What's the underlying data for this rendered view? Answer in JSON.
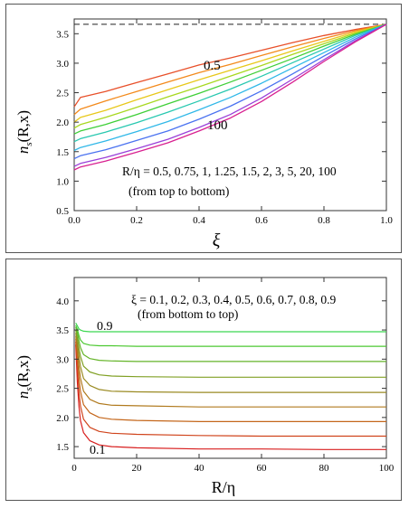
{
  "chart_data": [
    {
      "type": "line",
      "xlabel": "ξ",
      "ylabel": "n_s(R,x)",
      "ylabel_main": "n",
      "ylabel_sub": "s",
      "ylabel_rest": "(R,x)",
      "xlim": [
        0,
        1
      ],
      "ylim": [
        0.5,
        3.75
      ],
      "xticks": [
        "0.0",
        "0.2",
        "0.4",
        "0.6",
        "0.8",
        "1.0"
      ],
      "xtick_values": [
        0,
        0.2,
        0.4,
        0.6,
        0.8,
        1.0
      ],
      "yticks": [
        "0.5",
        "1.0",
        "1.5",
        "2.0",
        "2.5",
        "3.0",
        "3.5"
      ],
      "ytick_values": [
        0.5,
        1.0,
        1.5,
        2.0,
        2.5,
        3.0,
        3.5
      ],
      "asymptote": 3.66,
      "annotations": {
        "top_label": "0.5",
        "bottom_label": "100",
        "legend_line1": "R/η = 0.5, 0.75, 1, 1.25, 1.5, 2, 3, 5, 20, 100",
        "legend_line2": "(from top to bottom)"
      },
      "x": [
        0,
        0.02,
        0.1,
        0.2,
        0.3,
        0.4,
        0.5,
        0.6,
        0.7,
        0.8,
        0.9,
        1.0
      ],
      "series": [
        {
          "color": "#e8502a",
          "values": [
            2.26,
            2.42,
            2.52,
            2.67,
            2.82,
            2.97,
            3.09,
            3.22,
            3.35,
            3.47,
            3.57,
            3.66
          ]
        },
        {
          "color": "#f38a1c",
          "values": [
            2.13,
            2.22,
            2.36,
            2.52,
            2.68,
            2.84,
            2.98,
            3.13,
            3.28,
            3.42,
            3.55,
            3.66
          ]
        },
        {
          "color": "#e8c81a",
          "values": [
            2.0,
            2.08,
            2.2,
            2.38,
            2.55,
            2.72,
            2.88,
            3.04,
            3.21,
            3.37,
            3.53,
            3.66
          ]
        },
        {
          "color": "#a8d820",
          "values": [
            1.9,
            1.96,
            2.08,
            2.25,
            2.43,
            2.6,
            2.78,
            2.96,
            3.15,
            3.33,
            3.51,
            3.66
          ]
        },
        {
          "color": "#3fcf38",
          "values": [
            1.8,
            1.85,
            1.96,
            2.13,
            2.31,
            2.49,
            2.68,
            2.88,
            3.08,
            3.29,
            3.49,
            3.66
          ]
        },
        {
          "color": "#28c8b0",
          "values": [
            1.67,
            1.72,
            1.83,
            1.99,
            2.17,
            2.36,
            2.56,
            2.78,
            3.01,
            3.24,
            3.47,
            3.66
          ]
        },
        {
          "color": "#30b8e8",
          "values": [
            1.52,
            1.57,
            1.68,
            1.84,
            2.01,
            2.21,
            2.42,
            2.66,
            2.92,
            3.18,
            3.44,
            3.66
          ]
        },
        {
          "color": "#4a72f0",
          "values": [
            1.38,
            1.43,
            1.53,
            1.69,
            1.85,
            2.05,
            2.27,
            2.53,
            2.82,
            3.12,
            3.41,
            3.66
          ]
        },
        {
          "color": "#9a40d8",
          "values": [
            1.25,
            1.3,
            1.4,
            1.55,
            1.71,
            1.91,
            2.13,
            2.41,
            2.73,
            3.06,
            3.38,
            3.66
          ]
        },
        {
          "color": "#d82090",
          "values": [
            1.19,
            1.24,
            1.34,
            1.49,
            1.65,
            1.85,
            2.07,
            2.35,
            2.68,
            3.03,
            3.36,
            3.66
          ]
        }
      ]
    },
    {
      "type": "line",
      "xlabel": "R/η",
      "ylabel": "n_s(R,x)",
      "ylabel_main": "n",
      "ylabel_sub": "s",
      "ylabel_rest": "(R,x)",
      "xlim": [
        0,
        100
      ],
      "ylim": [
        1.3,
        4.4
      ],
      "xticks": [
        "0",
        "20",
        "40",
        "60",
        "80",
        "100"
      ],
      "xtick_values": [
        0,
        20,
        40,
        60,
        80,
        100
      ],
      "yticks": [
        "1.5",
        "2.0",
        "2.5",
        "3.0",
        "3.5",
        "4.0"
      ],
      "ytick_values": [
        1.5,
        2.0,
        2.5,
        3.0,
        3.5,
        4.0
      ],
      "annotations": {
        "top_label": "0.9",
        "bottom_label": "0.1",
        "legend_line1": "ξ = 0.1, 0.2, 0.3, 0.4, 0.5, 0.6, 0.7, 0.8, 0.9",
        "legend_line2": "(from bottom to top)"
      },
      "x": [
        0.5,
        1,
        1.5,
        2,
        3,
        5,
        8,
        12,
        20,
        40,
        60,
        80,
        100
      ],
      "series": [
        {
          "color": "#d81e1e",
          "values": [
            3.25,
            2.6,
            2.2,
            1.95,
            1.74,
            1.6,
            1.53,
            1.5,
            1.48,
            1.46,
            1.46,
            1.45,
            1.45
          ]
        },
        {
          "color": "#d0441c",
          "values": [
            3.3,
            2.85,
            2.45,
            2.2,
            1.97,
            1.83,
            1.76,
            1.73,
            1.71,
            1.69,
            1.68,
            1.68,
            1.68
          ]
        },
        {
          "color": "#c4661a",
          "values": [
            3.35,
            3.05,
            2.7,
            2.45,
            2.22,
            2.08,
            2.0,
            1.97,
            1.95,
            1.93,
            1.93,
            1.93,
            1.93
          ]
        },
        {
          "color": "#b07a1e",
          "values": [
            3.4,
            3.18,
            2.9,
            2.68,
            2.45,
            2.31,
            2.24,
            2.21,
            2.2,
            2.18,
            2.18,
            2.18,
            2.18
          ]
        },
        {
          "color": "#9a8a22",
          "values": [
            3.45,
            3.28,
            3.07,
            2.88,
            2.67,
            2.55,
            2.48,
            2.45,
            2.44,
            2.43,
            2.43,
            2.43,
            2.43
          ]
        },
        {
          "color": "#80a024",
          "values": [
            3.5,
            3.37,
            3.2,
            3.05,
            2.88,
            2.78,
            2.73,
            2.71,
            2.7,
            2.69,
            2.69,
            2.69,
            2.69
          ]
        },
        {
          "color": "#64b428",
          "values": [
            3.55,
            3.45,
            3.32,
            3.2,
            3.08,
            3.01,
            2.98,
            2.97,
            2.96,
            2.96,
            2.96,
            2.96,
            2.96
          ]
        },
        {
          "color": "#4cc830",
          "values": [
            3.58,
            3.51,
            3.41,
            3.33,
            3.27,
            3.24,
            3.23,
            3.23,
            3.22,
            3.22,
            3.22,
            3.22,
            3.22
          ]
        },
        {
          "color": "#3cd850",
          "values": [
            3.62,
            3.57,
            3.52,
            3.5,
            3.48,
            3.47,
            3.47,
            3.47,
            3.47,
            3.47,
            3.47,
            3.47,
            3.47
          ]
        }
      ]
    }
  ]
}
